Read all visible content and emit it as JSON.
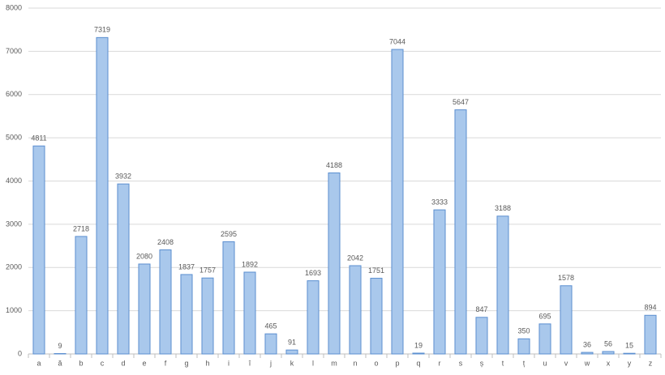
{
  "chart_data": {
    "type": "bar",
    "categories": [
      "a",
      "ă",
      "b",
      "c",
      "d",
      "e",
      "f",
      "g",
      "h",
      "i",
      "î",
      "j",
      "k",
      "l",
      "m",
      "n",
      "o",
      "p",
      "q",
      "r",
      "s",
      "ș",
      "t",
      "ț",
      "u",
      "v",
      "w",
      "x",
      "y",
      "z"
    ],
    "values": [
      4811,
      9,
      2718,
      7319,
      3932,
      2080,
      2408,
      1837,
      1757,
      2595,
      1892,
      465,
      91,
      1693,
      4188,
      2042,
      1751,
      7044,
      19,
      3333,
      5647,
      847,
      3188,
      350,
      695,
      1578,
      36,
      56,
      15,
      894
    ],
    "color": "#a9c8ec",
    "edge_color": "#5b8fd0",
    "ylim": [
      0,
      8000
    ],
    "yticks": [
      0,
      1000,
      2000,
      3000,
      4000,
      5000,
      6000,
      7000,
      8000
    ],
    "grid": true
  }
}
